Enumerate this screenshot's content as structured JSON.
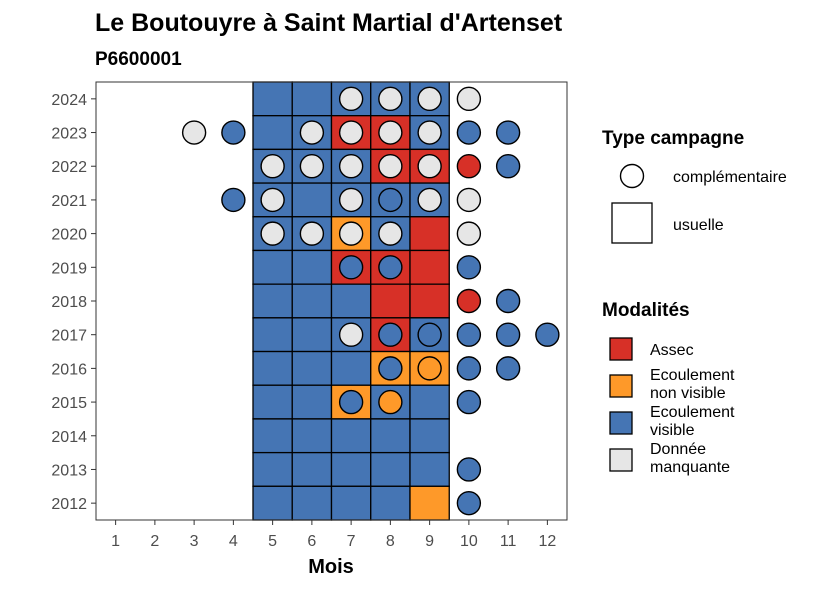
{
  "chart_data": {
    "type": "heatmap",
    "title": "Le Boutouyre à Saint Martial d'Artenset",
    "subtitle": "P6600001",
    "xlabel": "Mois",
    "ylabel": "",
    "x_ticks": [
      1,
      2,
      3,
      4,
      5,
      6,
      7,
      8,
      9,
      10,
      11,
      12
    ],
    "y_ticks": [
      2012,
      2013,
      2014,
      2015,
      2016,
      2017,
      2018,
      2019,
      2020,
      2021,
      2022,
      2023,
      2024
    ],
    "xlim": [
      0.5,
      12.5
    ],
    "ylim": [
      2011.5,
      2024.5
    ],
    "grid": false,
    "modalites": {
      "assec": "#d73027",
      "ecoulement_non_visible": "#fe9929",
      "ecoulement_visible": "#4575b4",
      "donnee_manquante": "#e6e6e6"
    },
    "legend": {
      "type_title": "Type campagne",
      "type_items": [
        {
          "shape": "circle",
          "label": "complémentaire"
        },
        {
          "shape": "square",
          "label": "usuelle"
        }
      ],
      "modalites_title": "Modalités",
      "modalites_items": [
        {
          "key": "assec",
          "lines": [
            "Assec"
          ]
        },
        {
          "key": "ecoulement_non_visible",
          "lines": [
            "Ecoulement",
            "non visible"
          ]
        },
        {
          "key": "ecoulement_visible",
          "lines": [
            "Ecoulement",
            "visible"
          ]
        },
        {
          "key": "donnee_manquante",
          "lines": [
            "Donnée",
            "manquante"
          ]
        }
      ]
    },
    "usuelle": [
      {
        "year": 2024,
        "months": [
          "ecoulement_visible",
          "ecoulement_visible",
          "ecoulement_visible",
          "ecoulement_visible",
          "ecoulement_visible"
        ]
      },
      {
        "year": 2023,
        "months": [
          "ecoulement_visible",
          "ecoulement_visible",
          "assec",
          "assec",
          "ecoulement_visible"
        ]
      },
      {
        "year": 2022,
        "months": [
          "ecoulement_visible",
          "ecoulement_visible",
          "ecoulement_visible",
          "assec",
          "assec"
        ]
      },
      {
        "year": 2021,
        "months": [
          "ecoulement_visible",
          "ecoulement_visible",
          "ecoulement_visible",
          "ecoulement_visible",
          "ecoulement_visible"
        ]
      },
      {
        "year": 2020,
        "months": [
          "ecoulement_visible",
          "ecoulement_visible",
          "ecoulement_non_visible",
          "ecoulement_visible",
          "assec"
        ]
      },
      {
        "year": 2019,
        "months": [
          "ecoulement_visible",
          "ecoulement_visible",
          "assec",
          "assec",
          "assec"
        ]
      },
      {
        "year": 2018,
        "months": [
          "ecoulement_visible",
          "ecoulement_visible",
          "ecoulement_visible",
          "assec",
          "assec"
        ]
      },
      {
        "year": 2017,
        "months": [
          "ecoulement_visible",
          "ecoulement_visible",
          "ecoulement_visible",
          "assec",
          "ecoulement_visible"
        ]
      },
      {
        "year": 2016,
        "months": [
          "ecoulement_visible",
          "ecoulement_visible",
          "ecoulement_visible",
          "ecoulement_non_visible",
          "ecoulement_non_visible"
        ]
      },
      {
        "year": 2015,
        "months": [
          "ecoulement_visible",
          "ecoulement_visible",
          "ecoulement_non_visible",
          "ecoulement_visible",
          "ecoulement_visible"
        ]
      },
      {
        "year": 2014,
        "months": [
          "ecoulement_visible",
          "ecoulement_visible",
          "ecoulement_visible",
          "ecoulement_visible",
          "ecoulement_visible"
        ]
      },
      {
        "year": 2013,
        "months": [
          "ecoulement_visible",
          "ecoulement_visible",
          "ecoulement_visible",
          "ecoulement_visible",
          "ecoulement_visible"
        ]
      },
      {
        "year": 2012,
        "months": [
          "ecoulement_visible",
          "ecoulement_visible",
          "ecoulement_visible",
          "ecoulement_visible",
          "ecoulement_non_visible"
        ]
      }
    ],
    "usuelle_first_month": 5,
    "complementaire": [
      {
        "year": 2024,
        "month": 7,
        "m": "donnee_manquante"
      },
      {
        "year": 2024,
        "month": 8,
        "m": "donnee_manquante"
      },
      {
        "year": 2024,
        "month": 9,
        "m": "donnee_manquante"
      },
      {
        "year": 2024,
        "month": 10,
        "m": "donnee_manquante"
      },
      {
        "year": 2023,
        "month": 3,
        "m": "donnee_manquante"
      },
      {
        "year": 2023,
        "month": 4,
        "m": "ecoulement_visible"
      },
      {
        "year": 2023,
        "month": 6,
        "m": "donnee_manquante"
      },
      {
        "year": 2023,
        "month": 7,
        "m": "donnee_manquante"
      },
      {
        "year": 2023,
        "month": 8,
        "m": "donnee_manquante"
      },
      {
        "year": 2023,
        "month": 9,
        "m": "donnee_manquante"
      },
      {
        "year": 2023,
        "month": 10,
        "m": "ecoulement_visible"
      },
      {
        "year": 2023,
        "month": 11,
        "m": "ecoulement_visible"
      },
      {
        "year": 2022,
        "month": 5,
        "m": "donnee_manquante"
      },
      {
        "year": 2022,
        "month": 6,
        "m": "donnee_manquante"
      },
      {
        "year": 2022,
        "month": 7,
        "m": "donnee_manquante"
      },
      {
        "year": 2022,
        "month": 8,
        "m": "donnee_manquante"
      },
      {
        "year": 2022,
        "month": 9,
        "m": "donnee_manquante"
      },
      {
        "year": 2022,
        "month": 10,
        "m": "assec"
      },
      {
        "year": 2022,
        "month": 11,
        "m": "ecoulement_visible"
      },
      {
        "year": 2021,
        "month": 4,
        "m": "ecoulement_visible"
      },
      {
        "year": 2021,
        "month": 5,
        "m": "donnee_manquante"
      },
      {
        "year": 2021,
        "month": 7,
        "m": "donnee_manquante"
      },
      {
        "year": 2021,
        "month": 8,
        "m": "ecoulement_visible"
      },
      {
        "year": 2021,
        "month": 9,
        "m": "donnee_manquante"
      },
      {
        "year": 2021,
        "month": 10,
        "m": "donnee_manquante"
      },
      {
        "year": 2020,
        "month": 5,
        "m": "donnee_manquante"
      },
      {
        "year": 2020,
        "month": 6,
        "m": "donnee_manquante"
      },
      {
        "year": 2020,
        "month": 7,
        "m": "donnee_manquante"
      },
      {
        "year": 2020,
        "month": 8,
        "m": "donnee_manquante"
      },
      {
        "year": 2020,
        "month": 10,
        "m": "donnee_manquante"
      },
      {
        "year": 2019,
        "month": 7,
        "m": "ecoulement_visible"
      },
      {
        "year": 2019,
        "month": 8,
        "m": "ecoulement_visible"
      },
      {
        "year": 2019,
        "month": 10,
        "m": "ecoulement_visible"
      },
      {
        "year": 2018,
        "month": 10,
        "m": "assec"
      },
      {
        "year": 2018,
        "month": 11,
        "m": "ecoulement_visible"
      },
      {
        "year": 2017,
        "month": 7,
        "m": "donnee_manquante"
      },
      {
        "year": 2017,
        "month": 8,
        "m": "ecoulement_visible"
      },
      {
        "year": 2017,
        "month": 9,
        "m": "ecoulement_visible"
      },
      {
        "year": 2017,
        "month": 10,
        "m": "ecoulement_visible"
      },
      {
        "year": 2017,
        "month": 11,
        "m": "ecoulement_visible"
      },
      {
        "year": 2017,
        "month": 12,
        "m": "ecoulement_visible"
      },
      {
        "year": 2016,
        "month": 8,
        "m": "ecoulement_visible"
      },
      {
        "year": 2016,
        "month": 9,
        "m": "ecoulement_non_visible"
      },
      {
        "year": 2016,
        "month": 10,
        "m": "ecoulement_visible"
      },
      {
        "year": 2016,
        "month": 11,
        "m": "ecoulement_visible"
      },
      {
        "year": 2015,
        "month": 7,
        "m": "ecoulement_visible"
      },
      {
        "year": 2015,
        "month": 8,
        "m": "ecoulement_non_visible"
      },
      {
        "year": 2015,
        "month": 10,
        "m": "ecoulement_visible"
      },
      {
        "year": 2013,
        "month": 10,
        "m": "ecoulement_visible"
      },
      {
        "year": 2012,
        "month": 10,
        "m": "ecoulement_visible"
      }
    ]
  }
}
